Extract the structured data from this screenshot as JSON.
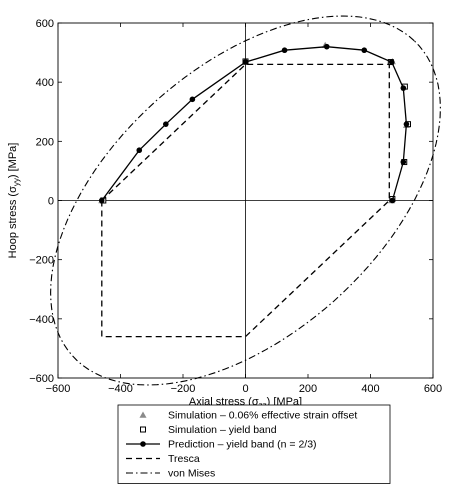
{
  "chart_data": {
    "type": "line",
    "xlabel": "Axial stress (σ",
    "xlabel_sub": "zz",
    "xlabel_unit": ") [MPa]",
    "ylabel": "Hoop stress (σ",
    "ylabel_sub": "yy",
    "ylabel_unit": ") [MPa]",
    "xlim": [
      -600,
      600
    ],
    "ylim": [
      -600,
      600
    ],
    "xticks": [
      -600,
      -400,
      -200,
      0,
      200,
      400,
      600
    ],
    "yticks": [
      -600,
      -400,
      -200,
      0,
      200,
      400,
      600
    ],
    "grid": false,
    "zero_lines": true,
    "legend_placement": "bottom-center",
    "series": [
      {
        "name": "Simulation – 0.06% effective strain offset",
        "marker": "triangle",
        "color": "#8a8a8a",
        "points": [
          [
            255,
            525
          ],
          [
            470,
            470
          ],
          [
            515,
            255
          ],
          [
            468,
            0
          ],
          [
            0,
            468
          ],
          [
            -460,
            0
          ]
        ]
      },
      {
        "name": "Simulation – yield band",
        "marker": "open-square",
        "color": "#000000",
        "points": [
          [
            465,
            468
          ],
          [
            510,
            385
          ],
          [
            520,
            258
          ],
          [
            508,
            130
          ],
          [
            470,
            5
          ],
          [
            0,
            470
          ],
          [
            -455,
            0
          ]
        ]
      },
      {
        "name": "Prediction – yield band (n = 2/3)",
        "marker": "filled-circle",
        "line": "solid",
        "color": "#000000",
        "points": [
          [
            -460,
            0
          ],
          [
            -340,
            170
          ],
          [
            -255,
            258
          ],
          [
            -170,
            342
          ],
          [
            0,
            468
          ],
          [
            125,
            508
          ],
          [
            260,
            520
          ],
          [
            380,
            508
          ],
          [
            468,
            468
          ],
          [
            505,
            380
          ],
          [
            515,
            258
          ],
          [
            505,
            130
          ],
          [
            470,
            0
          ]
        ]
      },
      {
        "name": "Tresca",
        "line": "dashed",
        "color": "#000000",
        "points": [
          [
            -460,
            0
          ],
          [
            -460,
            -460
          ],
          [
            0,
            -460
          ],
          [
            460,
            0
          ],
          [
            460,
            460
          ],
          [
            0,
            460
          ],
          [
            -460,
            0
          ]
        ]
      },
      {
        "name": "von Mises",
        "line": "dash-dot",
        "color": "#000000",
        "ellipse": {
          "a": 540,
          "b": 540,
          "shape": "von-mises"
        }
      }
    ]
  }
}
